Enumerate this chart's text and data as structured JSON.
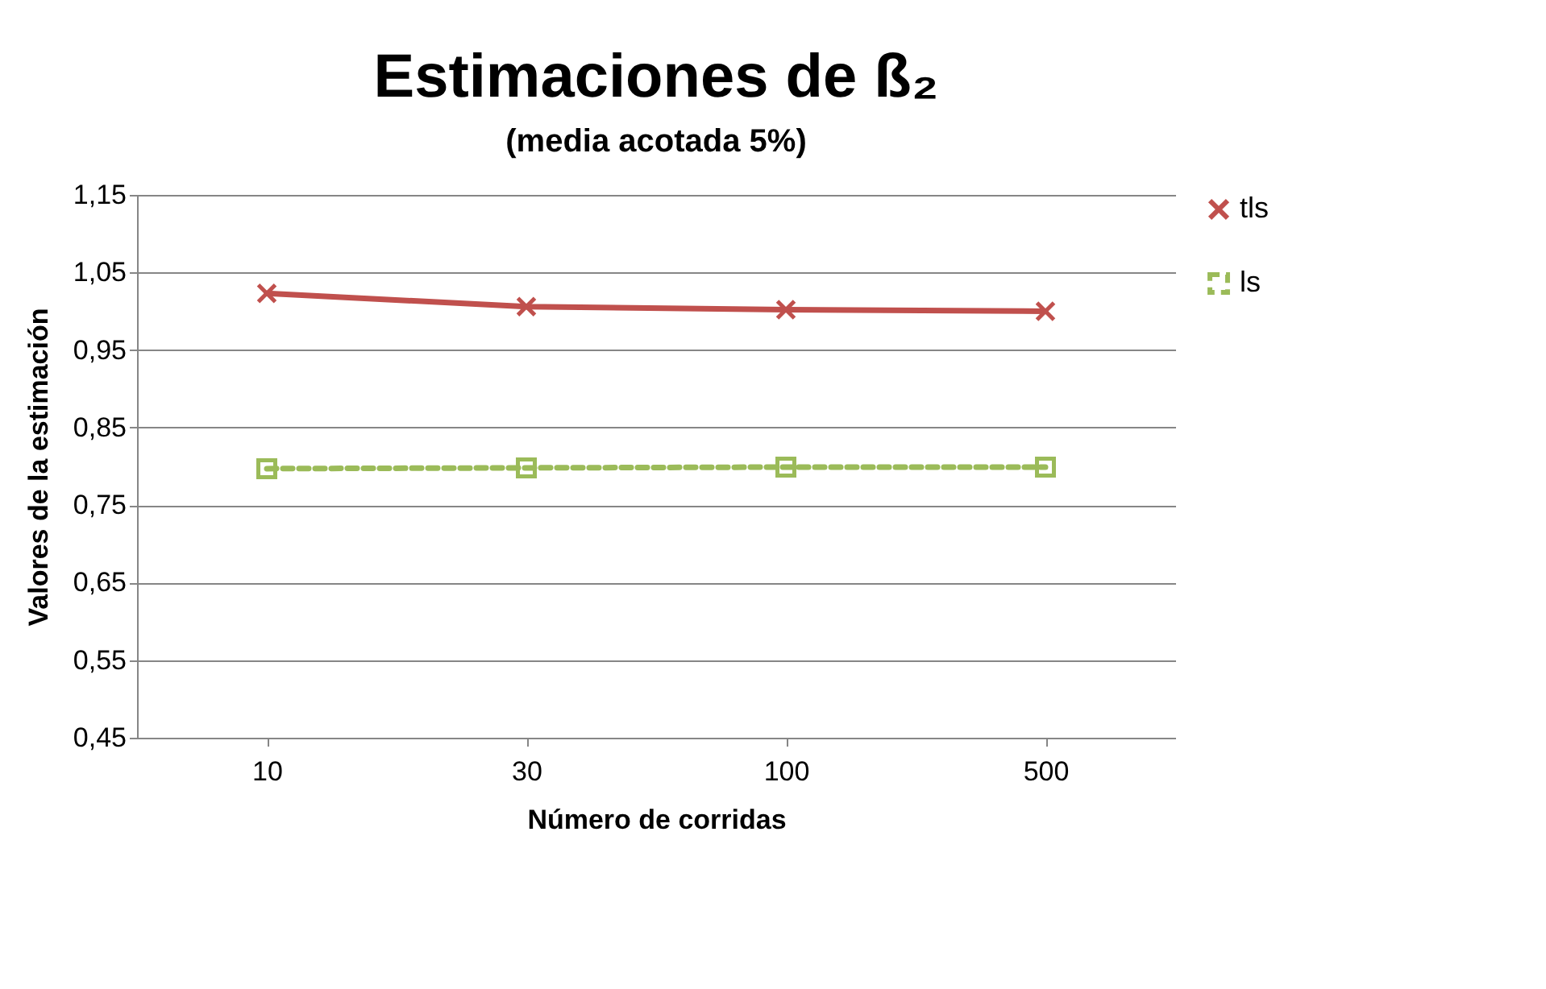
{
  "chart_data": {
    "type": "line",
    "title": "Estimaciones de ß₂",
    "subtitle": "(media acotada 5%)",
    "xlabel": "Número de corridas",
    "ylabel": "Valores de la estimación",
    "categories": [
      "10",
      "30",
      "100",
      "500"
    ],
    "series": [
      {
        "name": "tls",
        "color": "#c0504d",
        "marker": "cross",
        "line_style": "solid",
        "values": [
          1.023,
          1.006,
          1.002,
          1.0
        ]
      },
      {
        "name": "ls",
        "color": "#9bbb59",
        "marker": "square",
        "line_style": "dashed",
        "values": [
          0.797,
          0.798,
          0.799,
          0.799
        ]
      }
    ],
    "ylim": [
      0.45,
      1.15
    ],
    "yticks": [
      {
        "value": 0.45,
        "label": "0,45"
      },
      {
        "value": 0.55,
        "label": "0,55"
      },
      {
        "value": 0.65,
        "label": "0,65"
      },
      {
        "value": 0.75,
        "label": "0,75"
      },
      {
        "value": 0.85,
        "label": "0,85"
      },
      {
        "value": 0.95,
        "label": "0,95"
      },
      {
        "value": 1.05,
        "label": "1,05"
      },
      {
        "value": 1.15,
        "label": "1,15"
      }
    ],
    "grid": "y",
    "legend": "right"
  }
}
